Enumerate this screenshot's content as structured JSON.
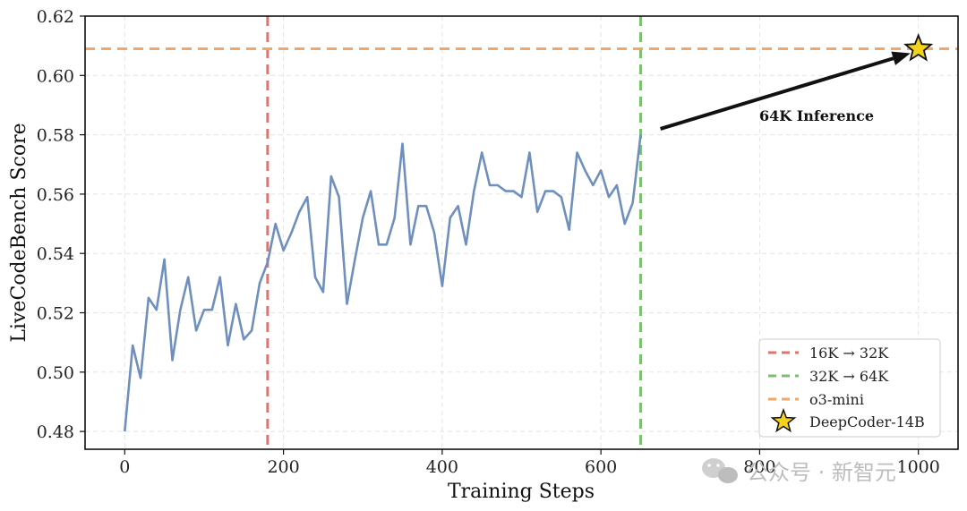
{
  "chart_data": {
    "type": "line",
    "xlabel": "Training Steps",
    "ylabel": "LiveCodeBench Score",
    "xlim": [
      -50,
      1050
    ],
    "ylim": [
      0.474,
      0.62
    ],
    "xticks": [
      0,
      200,
      400,
      600,
      800,
      1000
    ],
    "yticks": [
      0.48,
      0.5,
      0.52,
      0.54,
      0.56,
      0.58,
      0.6,
      0.62
    ],
    "grid": true,
    "legend_position": "lower-right",
    "series": [
      {
        "name": "",
        "color": "#6f8fbe",
        "x": [
          0,
          10,
          20,
          30,
          40,
          50,
          60,
          70,
          80,
          90,
          100,
          110,
          120,
          130,
          140,
          150,
          160,
          170,
          180,
          190,
          200,
          210,
          220,
          230,
          240,
          250,
          260,
          270,
          280,
          290,
          300,
          310,
          320,
          330,
          340,
          350,
          360,
          370,
          380,
          390,
          400,
          410,
          420,
          430,
          440,
          450,
          460,
          470,
          480,
          490,
          500,
          510,
          520,
          530,
          540,
          550,
          560,
          570,
          580,
          590,
          600,
          610,
          620,
          630,
          640,
          650
        ],
        "y": [
          0.48,
          0.509,
          0.498,
          0.525,
          0.521,
          0.538,
          0.504,
          0.521,
          0.532,
          0.514,
          0.521,
          0.521,
          0.532,
          0.509,
          0.523,
          0.511,
          0.514,
          0.53,
          0.537,
          0.55,
          0.541,
          0.547,
          0.554,
          0.559,
          0.532,
          0.527,
          0.566,
          0.559,
          0.523,
          0.538,
          0.552,
          0.561,
          0.543,
          0.543,
          0.552,
          0.577,
          0.543,
          0.556,
          0.556,
          0.547,
          0.529,
          0.552,
          0.556,
          0.543,
          0.561,
          0.574,
          0.563,
          0.563,
          0.561,
          0.561,
          0.559,
          0.574,
          0.554,
          0.561,
          0.561,
          0.559,
          0.548,
          0.574,
          0.568,
          0.563,
          0.568,
          0.559,
          0.563,
          0.55,
          0.557,
          0.58
        ]
      }
    ],
    "reference_lines": [
      {
        "orientation": "vertical",
        "value": 180,
        "label": "16K → 32K",
        "color": "#e0736b"
      },
      {
        "orientation": "vertical",
        "value": 650,
        "label": "32K → 64K",
        "color": "#7cbf72"
      },
      {
        "orientation": "horizontal",
        "value": 0.609,
        "label": "o3-mini",
        "color": "#f2a766"
      }
    ],
    "point": {
      "label": "DeepCoder-14B",
      "x": 1000,
      "y": 0.609,
      "color": "#f5d21a"
    },
    "annotation": {
      "text": "64K Inference",
      "from": [
        675,
        0.582
      ],
      "to": [
        990,
        0.6075
      ]
    }
  },
  "watermark_text": "公众号 · 新智元"
}
